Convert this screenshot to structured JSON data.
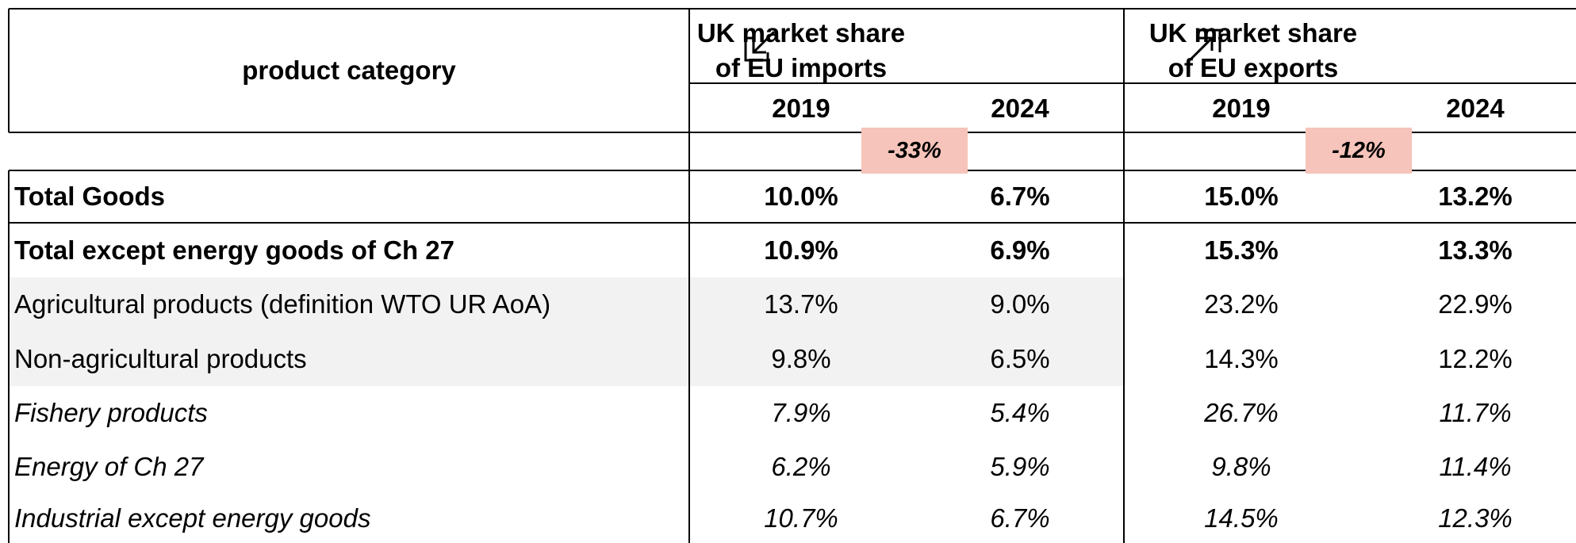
{
  "table": {
    "header": {
      "product_category": "product category",
      "groups": [
        {
          "lines": [
            "UK market share",
            "of EU imports"
          ]
        },
        {
          "lines": [
            "UK market share",
            "of EU exports"
          ]
        }
      ],
      "years": [
        "2019",
        "2024",
        "2019",
        "2024"
      ]
    },
    "changes": [
      "-33%",
      "-12%"
    ],
    "rows": [
      {
        "label": "Total Goods",
        "style": "bold",
        "shaded": false,
        "values": [
          "10.0%",
          "6.7%",
          "15.0%",
          "13.2%"
        ]
      },
      {
        "label": "Total except energy goods of Ch 27",
        "style": "bold",
        "shaded": false,
        "values": [
          "10.9%",
          "6.9%",
          "15.3%",
          "13.3%"
        ]
      },
      {
        "label": "Agricultural products (definition WTO UR AoA)",
        "style": "normal",
        "shaded": true,
        "values": [
          "13.7%",
          "9.0%",
          "23.2%",
          "22.9%"
        ]
      },
      {
        "label": "Non-agricultural products",
        "style": "normal",
        "shaded": true,
        "values": [
          "9.8%",
          "6.5%",
          "14.3%",
          "12.2%"
        ]
      },
      {
        "label": "Fishery products",
        "style": "italic",
        "shaded": false,
        "values": [
          "7.9%",
          "5.4%",
          "26.7%",
          "11.7%"
        ]
      },
      {
        "label": "Energy of Ch 27",
        "style": "italic",
        "shaded": false,
        "values": [
          "6.2%",
          "5.9%",
          "9.8%",
          "11.4%"
        ]
      },
      {
        "label": "Industrial except energy goods",
        "style": "italic",
        "shaded": false,
        "values": [
          "10.7%",
          "6.7%",
          "14.5%",
          "12.3%"
        ]
      }
    ]
  }
}
